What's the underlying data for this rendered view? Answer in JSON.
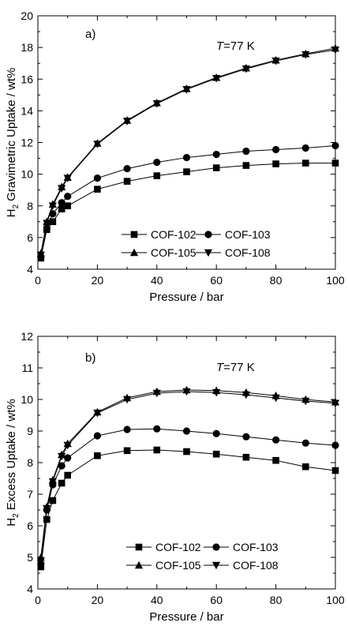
{
  "chart_data": [
    {
      "type": "line",
      "panel_label": "a)",
      "annotation": {
        "prefix": "T",
        "suffix": "=77 K"
      },
      "xlabel": "Pressure / bar",
      "ylabel": {
        "main": "H",
        "sub": "2",
        "rest": " Gravimetric Uptake / wt%"
      },
      "xlim": [
        0,
        100
      ],
      "ylim": [
        4,
        20
      ],
      "xticks": [
        0,
        20,
        40,
        60,
        80,
        100
      ],
      "yticks": [
        4,
        6,
        8,
        10,
        12,
        14,
        16,
        18,
        20
      ],
      "legend_position": "bottom-right",
      "series": [
        {
          "name": "COF-102",
          "marker": "square",
          "x": [
            1,
            3,
            5,
            8,
            10,
            20,
            30,
            40,
            50,
            60,
            70,
            80,
            90,
            100
          ],
          "y": [
            4.7,
            6.5,
            7.0,
            7.8,
            8.0,
            9.05,
            9.55,
            9.9,
            10.15,
            10.4,
            10.55,
            10.65,
            10.7,
            10.7
          ]
        },
        {
          "name": "COF-103",
          "marker": "circle",
          "x": [
            1,
            3,
            5,
            8,
            10,
            20,
            30,
            40,
            50,
            60,
            70,
            80,
            90,
            100
          ],
          "y": [
            4.8,
            6.6,
            7.5,
            8.2,
            8.6,
            9.75,
            10.35,
            10.75,
            11.05,
            11.25,
            11.45,
            11.55,
            11.65,
            11.8
          ]
        },
        {
          "name": "COF-105",
          "marker": "triangle-up",
          "x": [
            1,
            3,
            5,
            8,
            10,
            20,
            30,
            40,
            50,
            60,
            70,
            80,
            90,
            100
          ],
          "y": [
            5.0,
            7.0,
            8.1,
            9.2,
            9.8,
            11.95,
            13.4,
            14.5,
            15.4,
            16.1,
            16.7,
            17.2,
            17.6,
            17.95
          ]
        },
        {
          "name": "COF-108",
          "marker": "triangle-down",
          "x": [
            1,
            3,
            5,
            8,
            10,
            20,
            30,
            40,
            50,
            60,
            70,
            80,
            90,
            100
          ],
          "y": [
            4.9,
            6.9,
            8.0,
            9.1,
            9.75,
            11.9,
            13.35,
            14.45,
            15.35,
            16.05,
            16.65,
            17.15,
            17.55,
            17.85
          ]
        }
      ]
    },
    {
      "type": "line",
      "panel_label": "b)",
      "annotation": {
        "prefix": "T",
        "suffix": "=77 K"
      },
      "xlabel": "Pressure / bar",
      "ylabel": {
        "main": "H",
        "sub": "2",
        "rest": " Excess Uptake / wt%"
      },
      "xlim": [
        0,
        100
      ],
      "ylim": [
        4,
        12
      ],
      "xticks": [
        0,
        20,
        40,
        60,
        80,
        100
      ],
      "yticks": [
        4,
        5,
        6,
        7,
        8,
        9,
        10,
        11,
        12
      ],
      "legend_position": "bottom-right",
      "series": [
        {
          "name": "COF-102",
          "marker": "square",
          "x": [
            1,
            3,
            5,
            8,
            10,
            20,
            30,
            40,
            50,
            60,
            70,
            80,
            90,
            100
          ],
          "y": [
            4.7,
            6.2,
            6.8,
            7.35,
            7.6,
            8.22,
            8.38,
            8.4,
            8.35,
            8.27,
            8.17,
            8.07,
            7.87,
            7.75
          ]
        },
        {
          "name": "COF-103",
          "marker": "circle",
          "x": [
            1,
            3,
            5,
            8,
            10,
            20,
            30,
            40,
            50,
            60,
            70,
            80,
            90,
            100
          ],
          "y": [
            4.8,
            6.5,
            7.3,
            7.9,
            8.15,
            8.85,
            9.05,
            9.07,
            9.0,
            8.92,
            8.82,
            8.72,
            8.62,
            8.55
          ]
        },
        {
          "name": "COF-105",
          "marker": "triangle-up",
          "x": [
            1,
            3,
            5,
            8,
            10,
            20,
            30,
            40,
            50,
            60,
            70,
            80,
            90,
            100
          ],
          "y": [
            5.0,
            6.6,
            7.45,
            8.25,
            8.6,
            9.6,
            10.05,
            10.25,
            10.3,
            10.28,
            10.22,
            10.12,
            10.0,
            9.92
          ]
        },
        {
          "name": "COF-108",
          "marker": "triangle-down",
          "x": [
            1,
            3,
            5,
            8,
            10,
            20,
            30,
            40,
            50,
            60,
            70,
            80,
            90,
            100
          ],
          "y": [
            4.9,
            6.55,
            7.4,
            8.2,
            8.55,
            9.57,
            10.0,
            10.2,
            10.25,
            10.22,
            10.15,
            10.05,
            9.95,
            9.88
          ]
        }
      ]
    }
  ]
}
